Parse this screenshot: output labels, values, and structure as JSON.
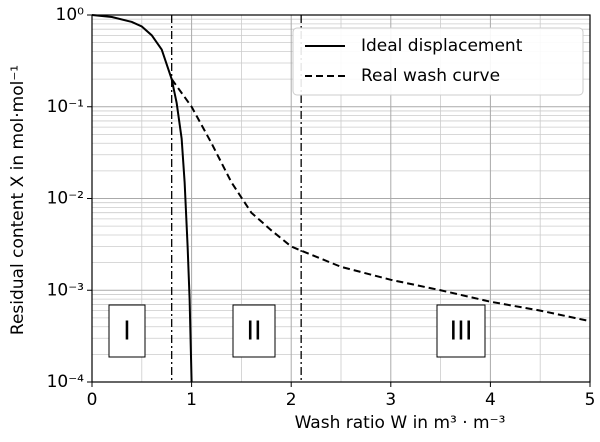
{
  "chart_data": {
    "type": "line",
    "xlabel": "Wash ratio W in m³ · m⁻³",
    "ylabel": "Residual content X in mol·mol⁻¹",
    "xlim": [
      0,
      5
    ],
    "xticks": [
      0,
      1,
      2,
      3,
      4,
      5
    ],
    "ylim": [
      0.0001,
      1
    ],
    "log_y": true,
    "yticks": [
      {
        "value": 1,
        "label": "10⁰"
      },
      {
        "value": 0.1,
        "label": "10⁻¹"
      },
      {
        "value": 0.01,
        "label": "10⁻²"
      },
      {
        "value": 0.001,
        "label": "10⁻³"
      },
      {
        "value": 0.0001,
        "label": "10⁻⁴"
      }
    ],
    "grid": true,
    "legend": "upper right",
    "vlines": [
      0.8,
      2.1
    ],
    "regions": [
      "I",
      "II",
      "III"
    ],
    "series": [
      {
        "name": "Ideal displacement",
        "color": "#000000",
        "dash": "solid",
        "x": [
          0,
          0.2,
          0.4,
          0.5,
          0.6,
          0.7,
          0.8,
          0.85,
          0.9,
          0.93,
          0.96,
          0.98,
          1.0
        ],
        "values": [
          1,
          0.95,
          0.84,
          0.75,
          0.6,
          0.42,
          0.2,
          0.11,
          0.045,
          0.015,
          0.003,
          0.0008,
          0.0001
        ]
      },
      {
        "name": "Real wash curve",
        "color": "#000000",
        "dash": "dashed",
        "x": [
          0.8,
          1.0,
          1.2,
          1.4,
          1.6,
          1.8,
          2.0,
          2.1,
          2.5,
          3.0,
          3.5,
          4.0,
          4.5,
          5.0
        ],
        "values": [
          0.2,
          0.1,
          0.04,
          0.015,
          0.007,
          0.0045,
          0.003,
          0.0027,
          0.0018,
          0.0013,
          0.001,
          0.00075,
          0.0006,
          0.00046
        ]
      }
    ]
  }
}
